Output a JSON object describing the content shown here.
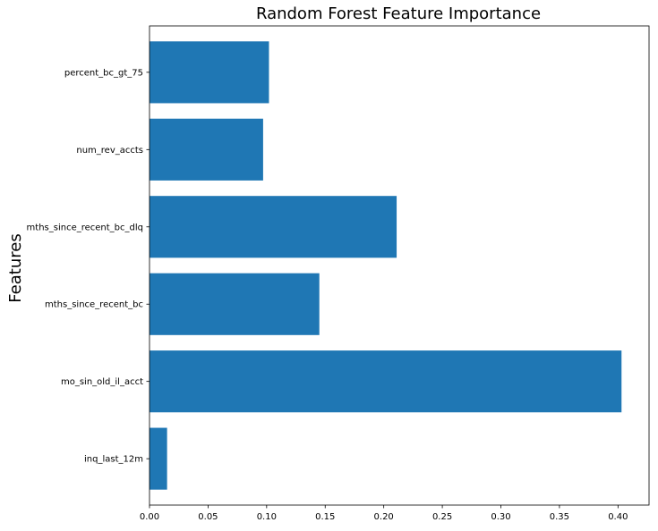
{
  "chart_data": {
    "type": "bar",
    "orientation": "horizontal",
    "title": "Random Forest Feature Importance",
    "xlabel": "",
    "ylabel": "Features",
    "categories": [
      "inq_last_12m",
      "mo_sin_old_il_acct",
      "mths_since_recent_bc",
      "mths_since_recent_bc_dlq",
      "num_rev_accts",
      "percent_bc_gt_75"
    ],
    "values": [
      0.015,
      0.403,
      0.145,
      0.211,
      0.097,
      0.102
    ],
    "xlim": [
      0,
      0.4265
    ],
    "xticks": [
      0.0,
      0.05,
      0.1,
      0.15,
      0.2,
      0.25,
      0.3,
      0.35,
      0.4
    ],
    "xtick_labels": [
      "0.00",
      "0.05",
      "0.10",
      "0.15",
      "0.20",
      "0.25",
      "0.30",
      "0.35",
      "0.40"
    ],
    "bar_color": "#1f77b4",
    "grid": false,
    "legend": "none"
  }
}
